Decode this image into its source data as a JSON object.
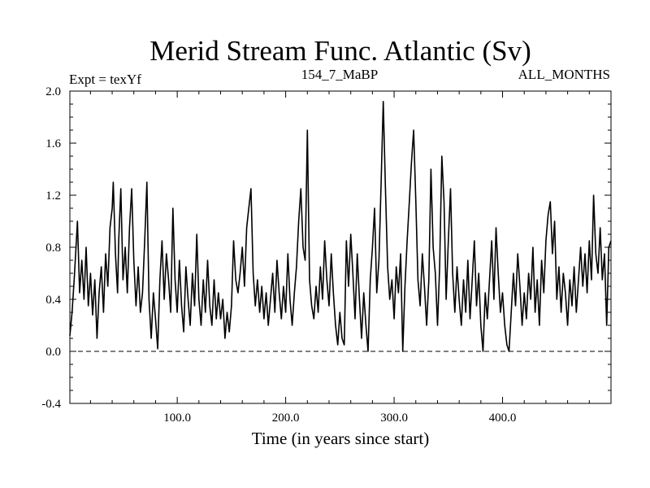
{
  "chart_data": {
    "type": "line",
    "title": "Merid Stream Func. Atlantic (Sv)",
    "subtitle_left": "Expt = texYf",
    "subtitle_center": "154_7_MaBP",
    "subtitle_right": "ALL_MONTHS",
    "xlabel": "Time (in years since start)",
    "ylabel": "",
    "xlim": [
      1,
      500
    ],
    "ylim": [
      -0.4,
      2.0
    ],
    "x_ticks": [
      {
        "value": 100,
        "label": "100.0"
      },
      {
        "value": 200,
        "label": "200.0"
      },
      {
        "value": 300,
        "label": "300.0"
      },
      {
        "value": 400,
        "label": "400.0"
      }
    ],
    "y_ticks": [
      {
        "value": -0.4,
        "label": "-0.4"
      },
      {
        "value": 0.0,
        "label": "0.0"
      },
      {
        "value": 0.4,
        "label": "0.4"
      },
      {
        "value": 0.8,
        "label": "0.8"
      },
      {
        "value": 1.2,
        "label": "1.2"
      },
      {
        "value": 1.6,
        "label": "1.6"
      },
      {
        "value": 2.0,
        "label": "2.0"
      }
    ],
    "reference_line": {
      "y": 0.0,
      "style": "dashed"
    },
    "grid": false,
    "series": [
      {
        "color": "#000000",
        "points": [
          [
            1,
            0.12
          ],
          [
            3,
            0.3
          ],
          [
            5,
            0.55
          ],
          [
            7,
            0.85
          ],
          [
            8,
            1.0
          ],
          [
            10,
            0.45
          ],
          [
            12,
            0.7
          ],
          [
            14,
            0.4
          ],
          [
            16,
            0.8
          ],
          [
            18,
            0.35
          ],
          [
            20,
            0.6
          ],
          [
            22,
            0.28
          ],
          [
            24,
            0.55
          ],
          [
            26,
            0.1
          ],
          [
            28,
            0.45
          ],
          [
            30,
            0.65
          ],
          [
            32,
            0.3
          ],
          [
            34,
            0.75
          ],
          [
            36,
            0.5
          ],
          [
            38,
            0.95
          ],
          [
            40,
            1.1
          ],
          [
            41,
            1.3
          ],
          [
            43,
            0.75
          ],
          [
            45,
            0.45
          ],
          [
            46,
            0.85
          ],
          [
            48,
            1.25
          ],
          [
            50,
            0.55
          ],
          [
            52,
            0.8
          ],
          [
            54,
            0.45
          ],
          [
            56,
            0.95
          ],
          [
            58,
            1.25
          ],
          [
            60,
            0.7
          ],
          [
            62,
            0.35
          ],
          [
            64,
            0.65
          ],
          [
            66,
            0.3
          ],
          [
            68,
            0.45
          ],
          [
            70,
            0.85
          ],
          [
            72,
            1.3
          ],
          [
            74,
            0.4
          ],
          [
            76,
            0.1
          ],
          [
            78,
            0.45
          ],
          [
            80,
            0.25
          ],
          [
            82,
            0.02
          ],
          [
            84,
            0.55
          ],
          [
            86,
            0.85
          ],
          [
            88,
            0.4
          ],
          [
            90,
            0.75
          ],
          [
            92,
            0.55
          ],
          [
            94,
            0.3
          ],
          [
            96,
            1.1
          ],
          [
            98,
            0.55
          ],
          [
            100,
            0.3
          ],
          [
            102,
            0.7
          ],
          [
            104,
            0.35
          ],
          [
            106,
            0.15
          ],
          [
            108,
            0.65
          ],
          [
            110,
            0.4
          ],
          [
            112,
            0.2
          ],
          [
            114,
            0.6
          ],
          [
            116,
            0.35
          ],
          [
            118,
            0.9
          ],
          [
            120,
            0.4
          ],
          [
            122,
            0.2
          ],
          [
            124,
            0.55
          ],
          [
            126,
            0.3
          ],
          [
            128,
            0.7
          ],
          [
            130,
            0.35
          ],
          [
            132,
            0.2
          ],
          [
            134,
            0.55
          ],
          [
            136,
            0.25
          ],
          [
            138,
            0.45
          ],
          [
            140,
            0.25
          ],
          [
            142,
            0.4
          ],
          [
            144,
            0.1
          ],
          [
            146,
            0.3
          ],
          [
            148,
            0.15
          ],
          [
            150,
            0.35
          ],
          [
            152,
            0.85
          ],
          [
            154,
            0.55
          ],
          [
            156,
            0.45
          ],
          [
            158,
            0.6
          ],
          [
            160,
            0.8
          ],
          [
            162,
            0.5
          ],
          [
            164,
            0.95
          ],
          [
            166,
            1.1
          ],
          [
            168,
            1.25
          ],
          [
            170,
            0.6
          ],
          [
            172,
            0.35
          ],
          [
            174,
            0.55
          ],
          [
            176,
            0.3
          ],
          [
            178,
            0.5
          ],
          [
            180,
            0.25
          ],
          [
            182,
            0.45
          ],
          [
            184,
            0.2
          ],
          [
            186,
            0.4
          ],
          [
            188,
            0.6
          ],
          [
            190,
            0.3
          ],
          [
            192,
            0.7
          ],
          [
            194,
            0.45
          ],
          [
            196,
            0.25
          ],
          [
            198,
            0.5
          ],
          [
            200,
            0.3
          ],
          [
            202,
            0.75
          ],
          [
            204,
            0.4
          ],
          [
            206,
            0.2
          ],
          [
            208,
            0.45
          ],
          [
            210,
            0.65
          ],
          [
            212,
            1.0
          ],
          [
            214,
            1.25
          ],
          [
            216,
            0.8
          ],
          [
            218,
            0.7
          ],
          [
            220,
            1.7
          ],
          [
            222,
            0.55
          ],
          [
            224,
            0.35
          ],
          [
            226,
            0.25
          ],
          [
            228,
            0.5
          ],
          [
            230,
            0.3
          ],
          [
            232,
            0.65
          ],
          [
            234,
            0.4
          ],
          [
            236,
            0.85
          ],
          [
            238,
            0.55
          ],
          [
            240,
            0.35
          ],
          [
            242,
            0.75
          ],
          [
            244,
            0.45
          ],
          [
            246,
            0.2
          ],
          [
            248,
            0.05
          ],
          [
            250,
            0.3
          ],
          [
            252,
            0.1
          ],
          [
            254,
            0.05
          ],
          [
            256,
            0.85
          ],
          [
            258,
            0.5
          ],
          [
            260,
            0.9
          ],
          [
            262,
            0.6
          ],
          [
            264,
            0.25
          ],
          [
            266,
            0.75
          ],
          [
            268,
            0.4
          ],
          [
            270,
            0.1
          ],
          [
            272,
            0.45
          ],
          [
            274,
            0.2
          ],
          [
            276,
            0.0
          ],
          [
            278,
            0.55
          ],
          [
            280,
            0.8
          ],
          [
            282,
            1.1
          ],
          [
            284,
            0.45
          ],
          [
            286,
            0.7
          ],
          [
            288,
            1.3
          ],
          [
            290,
            1.92
          ],
          [
            292,
            1.25
          ],
          [
            294,
            0.65
          ],
          [
            296,
            0.4
          ],
          [
            298,
            0.55
          ],
          [
            300,
            0.25
          ],
          [
            302,
            0.65
          ],
          [
            304,
            0.45
          ],
          [
            306,
            0.75
          ],
          [
            308,
            0.0
          ],
          [
            310,
            0.5
          ],
          [
            312,
            0.85
          ],
          [
            314,
            1.15
          ],
          [
            316,
            1.45
          ],
          [
            318,
            1.7
          ],
          [
            320,
            1.15
          ],
          [
            322,
            0.55
          ],
          [
            324,
            0.35
          ],
          [
            326,
            0.75
          ],
          [
            328,
            0.5
          ],
          [
            330,
            0.2
          ],
          [
            332,
            0.55
          ],
          [
            334,
            1.4
          ],
          [
            336,
            0.8
          ],
          [
            338,
            0.6
          ],
          [
            340,
            0.2
          ],
          [
            342,
            0.65
          ],
          [
            344,
            1.5
          ],
          [
            346,
            1.15
          ],
          [
            348,
            0.4
          ],
          [
            350,
            0.85
          ],
          [
            352,
            1.25
          ],
          [
            354,
            0.6
          ],
          [
            356,
            0.3
          ],
          [
            358,
            0.65
          ],
          [
            360,
            0.4
          ],
          [
            362,
            0.2
          ],
          [
            364,
            0.55
          ],
          [
            366,
            0.3
          ],
          [
            368,
            0.7
          ],
          [
            370,
            0.25
          ],
          [
            372,
            0.55
          ],
          [
            374,
            0.85
          ],
          [
            376,
            0.35
          ],
          [
            378,
            0.6
          ],
          [
            380,
            0.2
          ],
          [
            382,
            0.0
          ],
          [
            384,
            0.45
          ],
          [
            386,
            0.25
          ],
          [
            388,
            0.55
          ],
          [
            390,
            0.85
          ],
          [
            392,
            0.4
          ],
          [
            394,
            0.95
          ],
          [
            396,
            0.6
          ],
          [
            398,
            0.3
          ],
          [
            400,
            0.45
          ],
          [
            402,
            0.2
          ],
          [
            404,
            0.05
          ],
          [
            406,
            0.0
          ],
          [
            408,
            0.3
          ],
          [
            410,
            0.6
          ],
          [
            412,
            0.35
          ],
          [
            414,
            0.75
          ],
          [
            416,
            0.5
          ],
          [
            418,
            0.2
          ],
          [
            420,
            0.45
          ],
          [
            422,
            0.25
          ],
          [
            424,
            0.6
          ],
          [
            426,
            0.4
          ],
          [
            428,
            0.8
          ],
          [
            430,
            0.3
          ],
          [
            432,
            0.55
          ],
          [
            434,
            0.2
          ],
          [
            436,
            0.7
          ],
          [
            438,
            0.45
          ],
          [
            440,
            0.85
          ],
          [
            442,
            1.05
          ],
          [
            444,
            1.15
          ],
          [
            446,
            0.75
          ],
          [
            448,
            1.0
          ],
          [
            450,
            0.4
          ],
          [
            452,
            0.65
          ],
          [
            454,
            0.3
          ],
          [
            456,
            0.6
          ],
          [
            458,
            0.45
          ],
          [
            460,
            0.2
          ],
          [
            462,
            0.55
          ],
          [
            464,
            0.35
          ],
          [
            466,
            0.65
          ],
          [
            468,
            0.3
          ],
          [
            470,
            0.55
          ],
          [
            472,
            0.8
          ],
          [
            474,
            0.5
          ],
          [
            476,
            0.75
          ],
          [
            478,
            0.45
          ],
          [
            480,
            0.85
          ],
          [
            482,
            0.55
          ],
          [
            484,
            1.2
          ],
          [
            486,
            0.75
          ],
          [
            488,
            0.6
          ],
          [
            490,
            0.95
          ],
          [
            492,
            0.55
          ],
          [
            494,
            0.75
          ],
          [
            496,
            0.2
          ],
          [
            498,
            0.8
          ],
          [
            500,
            0.85
          ]
        ]
      }
    ]
  }
}
